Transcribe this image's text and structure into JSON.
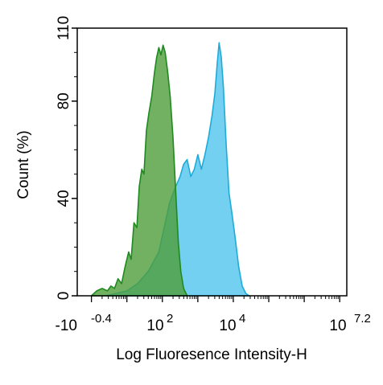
{
  "chart_data": {
    "type": "area",
    "title": "",
    "xlabel": "Log Fluoresence Intensity-H",
    "ylabel": "Count  (%)",
    "x_scale": "log (biexponential)",
    "ylim": [
      0,
      110
    ],
    "y_ticks": [
      0,
      40,
      80,
      110
    ],
    "x_tick_labels": [
      {
        "base": "-10",
        "exp": "-0.4"
      },
      {
        "base": "10",
        "exp": "2"
      },
      {
        "base": "10",
        "exp": "4"
      },
      {
        "base": "10",
        "exp": "7.2"
      }
    ],
    "grid": false,
    "legend": "none",
    "series": [
      {
        "color": "#1f8a1f",
        "fill": "#4d9e3a",
        "points": [
          [
            0.0,
            0
          ],
          [
            0.15,
            2
          ],
          [
            0.3,
            3
          ],
          [
            0.45,
            2
          ],
          [
            0.55,
            4
          ],
          [
            0.65,
            3
          ],
          [
            0.75,
            7
          ],
          [
            0.85,
            5
          ],
          [
            0.95,
            12
          ],
          [
            1.05,
            18
          ],
          [
            1.12,
            15
          ],
          [
            1.2,
            30
          ],
          [
            1.28,
            28
          ],
          [
            1.35,
            45
          ],
          [
            1.42,
            52
          ],
          [
            1.48,
            50
          ],
          [
            1.55,
            68
          ],
          [
            1.62,
            75
          ],
          [
            1.7,
            82
          ],
          [
            1.78,
            92
          ],
          [
            1.84,
            98
          ],
          [
            1.9,
            102
          ],
          [
            1.96,
            99
          ],
          [
            2.02,
            103
          ],
          [
            2.08,
            100
          ],
          [
            2.15,
            92
          ],
          [
            2.22,
            82
          ],
          [
            2.3,
            65
          ],
          [
            2.38,
            42
          ],
          [
            2.45,
            22
          ],
          [
            2.52,
            10
          ],
          [
            2.6,
            3
          ],
          [
            2.7,
            0
          ]
        ]
      },
      {
        "color": "#1eabd9",
        "fill": "#5cc8ef",
        "points": [
          [
            0.4,
            0
          ],
          [
            0.7,
            1
          ],
          [
            1.0,
            2
          ],
          [
            1.3,
            5
          ],
          [
            1.6,
            10
          ],
          [
            1.9,
            18
          ],
          [
            2.05,
            28
          ],
          [
            2.2,
            38
          ],
          [
            2.35,
            44
          ],
          [
            2.5,
            49
          ],
          [
            2.6,
            54
          ],
          [
            2.7,
            56
          ],
          [
            2.8,
            49
          ],
          [
            2.9,
            52
          ],
          [
            3.0,
            58
          ],
          [
            3.1,
            52
          ],
          [
            3.2,
            58
          ],
          [
            3.3,
            65
          ],
          [
            3.4,
            74
          ],
          [
            3.48,
            83
          ],
          [
            3.55,
            96
          ],
          [
            3.6,
            104
          ],
          [
            3.66,
            98
          ],
          [
            3.72,
            86
          ],
          [
            3.8,
            62
          ],
          [
            3.88,
            42
          ],
          [
            3.96,
            34
          ],
          [
            4.05,
            24
          ],
          [
            4.15,
            12
          ],
          [
            4.25,
            4
          ],
          [
            4.35,
            1
          ],
          [
            4.45,
            0
          ]
        ]
      }
    ]
  }
}
